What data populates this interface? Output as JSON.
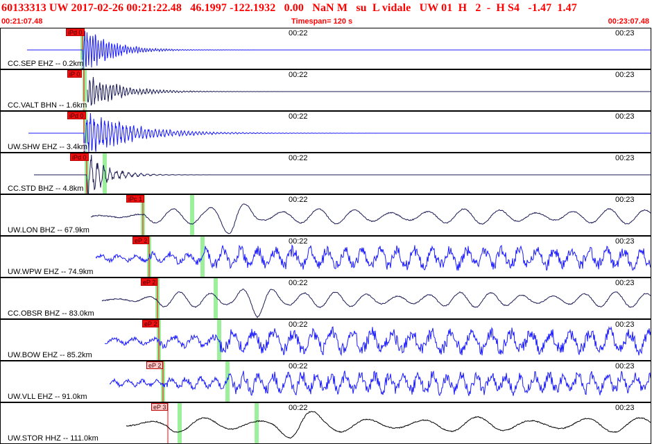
{
  "header": {
    "title": "60133313 UW 2017-02-26 00:21:22.48   46.1997 -122.1932   0.00   NaN M   su  L vidale   UW 01  H   2  -  H S4   -1.47  1.47",
    "start_time": "00:21:07.48",
    "timespan": "Timespan= 120 s",
    "end_time": "00:23:07.48"
  },
  "panels": [
    {
      "station": "CC.SEP EHZ -- 0.2km",
      "pick": "iPd 0",
      "pick_style": "red",
      "tick_a": "00:22",
      "tick_b": "00:23",
      "color": "#1a1aff"
    },
    {
      "station": "CC.VALT BHN -- 1.6km",
      "pick": "iP 0",
      "pick_style": "red",
      "tick_a": "00:22",
      "tick_b": "00:23",
      "color": "#1a1a55"
    },
    {
      "station": "UW.SHW EHZ -- 3.4km",
      "pick": "iPd 0",
      "pick_style": "red",
      "tick_a": "00:22",
      "tick_b": "00:23",
      "color": "#1a1aff"
    },
    {
      "station": "CC.STD BHZ -- 4.8km",
      "pick": "iPd 0",
      "pick_style": "red",
      "tick_a": "00:22",
      "tick_b": "00:23",
      "color": "#1a1a55"
    },
    {
      "station": "UW.LON BHZ -- 67.9km",
      "pick": "iPc 1",
      "pick_style": "red",
      "tick_a": "00:22",
      "tick_b": "00:23",
      "color": "#1a1a55"
    },
    {
      "station": "UW.WPW EHZ -- 74.9km",
      "pick": "eP 2",
      "pick_style": "red",
      "tick_a": "00:22",
      "tick_b": "00:23",
      "color": "#1a1aff"
    },
    {
      "station": "CC.OBSR BHZ -- 83.0km",
      "pick": "eP 2",
      "pick_style": "red",
      "tick_a": "00:22",
      "tick_b": "00:23",
      "color": "#1a1a55"
    },
    {
      "station": "UW.BOW EHZ -- 85.2km",
      "pick": "eP 2",
      "pick_style": "red",
      "tick_a": "00:22",
      "tick_b": "00:23",
      "color": "#1a1aff"
    },
    {
      "station": "UW.VLL EHZ -- 91.0km",
      "pick": "eP 2",
      "pick_style": "pink",
      "tick_a": "00:22",
      "tick_b": "00:23",
      "color": "#1a1aff"
    },
    {
      "station": "UW.STOR HHZ -- 111.0km",
      "pick": "eP 3",
      "pick_style": "pink",
      "tick_a": "00:22",
      "tick_b": "00:23",
      "color": "#000000"
    }
  ]
}
